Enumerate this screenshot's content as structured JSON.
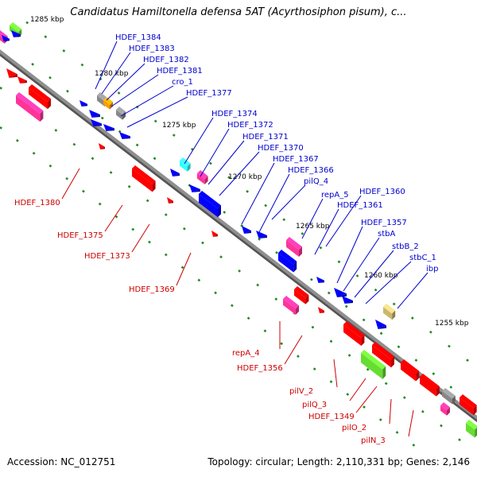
{
  "title": "Candidatus Hamiltonella defensa 5AT (Acyrthosiphon pisum), c...",
  "footer": {
    "accession": "Accession: NC_012751",
    "summary": "Topology: circular; Length: 2,110,331 bp; Genes: 2,146"
  },
  "colors": {
    "backbone": "#8f8f8f",
    "forward_label": "#0000cc",
    "reverse_label": "#cc0000",
    "tick": "#228b22",
    "gene_blue": "#0000ff",
    "gene_red": "#ff0000",
    "gene_pink": "#ff3399",
    "gene_green": "#66dd33",
    "gene_cyan": "#33ffff",
    "gene_orange": "#ff9900",
    "gene_gray": "#888888",
    "gene_tan": "#c8b870"
  },
  "scale_labels": [
    {
      "text": "1285 kbp"
    },
    {
      "text": "1280 kbp"
    },
    {
      "text": "1275 kbp"
    },
    {
      "text": "1270 kbp"
    },
    {
      "text": "1265 kbp"
    },
    {
      "text": "1260 kbp"
    },
    {
      "text": "1255 kbp"
    }
  ],
  "forward_labels": [
    {
      "text": "HDEF_1384"
    },
    {
      "text": "HDEF_1383"
    },
    {
      "text": "HDEF_1382"
    },
    {
      "text": "HDEF_1381"
    },
    {
      "text": "cro_1"
    },
    {
      "text": "HDEF_1377"
    },
    {
      "text": "HDEF_1374"
    },
    {
      "text": "HDEF_1372"
    },
    {
      "text": "HDEF_1371"
    },
    {
      "text": "HDEF_1370"
    },
    {
      "text": "HDEF_1367"
    },
    {
      "text": "HDEF_1366"
    },
    {
      "text": "pilQ_4"
    },
    {
      "text": "repA_5"
    },
    {
      "text": "HDEF_1360"
    },
    {
      "text": "HDEF_1361"
    },
    {
      "text": "HDEF_1357"
    },
    {
      "text": "stbA"
    },
    {
      "text": "stbB_2"
    },
    {
      "text": "stbC_1"
    },
    {
      "text": "ibp"
    }
  ],
  "reverse_labels": [
    {
      "text": "HDEF_1380"
    },
    {
      "text": "HDEF_1375"
    },
    {
      "text": "HDEF_1373"
    },
    {
      "text": "HDEF_1369"
    },
    {
      "text": "repA_4"
    },
    {
      "text": "HDEF_1356"
    },
    {
      "text": "pilV_2"
    },
    {
      "text": "pilQ_3"
    },
    {
      "text": "HDEF_1349"
    },
    {
      "text": "pilO_2"
    },
    {
      "text": "pilN_3"
    }
  ],
  "genes": [
    {
      "name": "gene-pink-topleft",
      "color": "gene_pink",
      "shape": "block"
    },
    {
      "name": "gene-green-topleft",
      "color": "gene_green",
      "shape": "block"
    },
    {
      "name": "gene-blue-topleft-1",
      "color": "gene_blue",
      "shape": "arrow"
    },
    {
      "name": "gene-blue-topleft-2",
      "color": "gene_blue",
      "shape": "arrow"
    },
    {
      "name": "gene-red-topleft-1",
      "color": "gene_red",
      "shape": "arrow"
    },
    {
      "name": "gene-red-topleft-2",
      "color": "gene_red",
      "shape": "arrow"
    },
    {
      "name": "gene-pink-left",
      "color": "gene_pink",
      "shape": "block"
    },
    {
      "name": "gene-red-left",
      "color": "gene_red",
      "shape": "block"
    },
    {
      "name": "gene-blue-1384",
      "color": "gene_blue",
      "shape": "arrow"
    },
    {
      "name": "gene-gray-1383",
      "color": "gene_gray",
      "shape": "block"
    },
    {
      "name": "gene-orange-1382",
      "color": "gene_orange",
      "shape": "block"
    },
    {
      "name": "gene-blue-1381a",
      "color": "gene_blue",
      "shape": "arrow"
    },
    {
      "name": "gene-gray-cro1",
      "color": "gene_gray",
      "shape": "block"
    },
    {
      "name": "gene-blue-1377a",
      "color": "gene_blue",
      "shape": "arrow"
    },
    {
      "name": "gene-blue-1377b",
      "color": "gene_blue",
      "shape": "arrow"
    },
    {
      "name": "gene-blue-1377c",
      "color": "gene_blue",
      "shape": "arrow"
    },
    {
      "name": "gene-red-small-1",
      "color": "gene_red",
      "shape": "arrow"
    },
    {
      "name": "gene-cyan-1374",
      "color": "gene_cyan",
      "shape": "block"
    },
    {
      "name": "gene-pink-1372",
      "color": "gene_pink",
      "shape": "block"
    },
    {
      "name": "gene-blue-1371a",
      "color": "gene_blue",
      "shape": "arrow"
    },
    {
      "name": "gene-blue-1371b",
      "color": "gene_blue",
      "shape": "arrow"
    },
    {
      "name": "gene-red-1375",
      "color": "gene_red",
      "shape": "block"
    },
    {
      "name": "gene-blue-1370",
      "color": "gene_blue",
      "shape": "block"
    },
    {
      "name": "gene-red-small-2",
      "color": "gene_red",
      "shape": "arrow"
    },
    {
      "name": "gene-blue-1367a",
      "color": "gene_blue",
      "shape": "arrow"
    },
    {
      "name": "gene-blue-1367b",
      "color": "gene_blue",
      "shape": "arrow"
    },
    {
      "name": "gene-red-small-3",
      "color": "gene_red",
      "shape": "arrow"
    },
    {
      "name": "gene-pink-repA5",
      "color": "gene_pink",
      "shape": "block"
    },
    {
      "name": "gene-blue-1361",
      "color": "gene_blue",
      "shape": "block"
    },
    {
      "name": "gene-blue-1357a",
      "color": "gene_blue",
      "shape": "arrow"
    },
    {
      "name": "gene-blue-stbA",
      "color": "gene_blue",
      "shape": "arrow"
    },
    {
      "name": "gene-blue-stbB",
      "color": "gene_blue",
      "shape": "arrow"
    },
    {
      "name": "gene-red-1369",
      "color": "gene_red",
      "shape": "block"
    },
    {
      "name": "gene-pink-repA4",
      "color": "gene_pink",
      "shape": "block"
    },
    {
      "name": "gene-red-small-4",
      "color": "gene_red",
      "shape": "arrow"
    },
    {
      "name": "gene-tan-ibp",
      "color": "gene_tan",
      "shape": "block"
    },
    {
      "name": "gene-blue-ibp",
      "color": "gene_blue",
      "shape": "arrow"
    },
    {
      "name": "gene-red-1356",
      "color": "gene_red",
      "shape": "block"
    },
    {
      "name": "gene-green-pilV",
      "color": "gene_green",
      "shape": "block"
    },
    {
      "name": "gene-red-pilQ3",
      "color": "gene_red",
      "shape": "block"
    },
    {
      "name": "gene-red-1349",
      "color": "gene_red",
      "shape": "block"
    },
    {
      "name": "gene-red-pilO",
      "color": "gene_red",
      "shape": "block"
    },
    {
      "name": "gene-gray-pilN",
      "color": "gene_gray",
      "shape": "block"
    },
    {
      "name": "gene-pink-bottomright",
      "color": "gene_pink",
      "shape": "block"
    },
    {
      "name": "gene-red-bottomright",
      "color": "gene_red",
      "shape": "block"
    },
    {
      "name": "gene-green-bottomright",
      "color": "gene_green",
      "shape": "block"
    }
  ]
}
